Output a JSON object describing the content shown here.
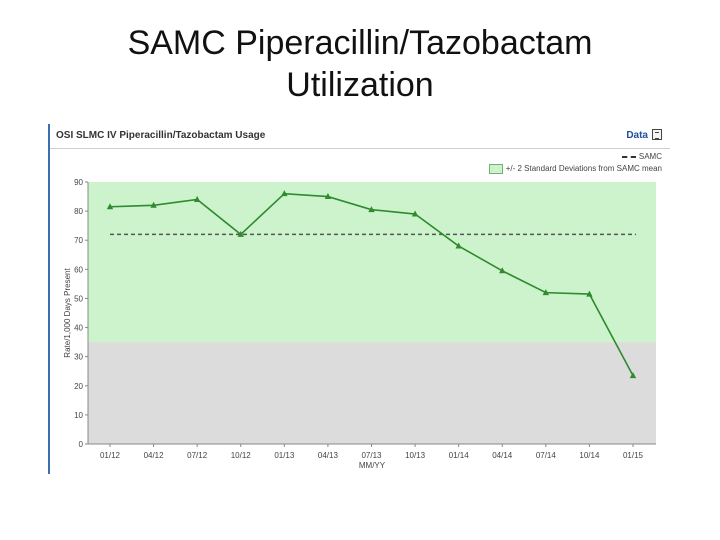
{
  "slide": {
    "title_line1": "SAMC Piperacillin/Tazobactam",
    "title_line2": "Utilization"
  },
  "panel": {
    "chart_title": "OSI SLMC IV Piperacillin/Tazobactam Usage",
    "data_link": "Data"
  },
  "colors": {
    "band": "#cdf3cd",
    "below_band": "#dcdcdc",
    "line": "#2e8b2e",
    "mean": "#555555"
  },
  "chart_data": {
    "type": "line",
    "title": "OSI SLMC IV Piperacillin/Tazobactam Usage",
    "xlabel": "MM/YY",
    "ylabel": "Rate/1,000 Days Present",
    "categories": [
      "01/12",
      "04/12",
      "07/12",
      "10/12",
      "01/13",
      "04/13",
      "07/13",
      "10/13",
      "01/14",
      "04/14",
      "07/14",
      "10/14",
      "01/15"
    ],
    "series": [
      {
        "values": [
          81.5,
          82,
          84,
          72,
          86,
          85,
          80.5,
          79,
          68,
          59.5,
          52,
          51.5,
          23.5
        ]
      }
    ],
    "reference_lines": [
      {
        "label": "SAMC",
        "value": 72,
        "style": "dashed"
      }
    ],
    "band": {
      "label": "+/- 2 Standard Deviations from SAMC mean",
      "from": 35,
      "to": 90
    },
    "y_ticks": [
      "0",
      "10",
      "20",
      "30",
      "40",
      "50",
      "60",
      "70",
      "80",
      "90"
    ],
    "ylim": [
      0,
      90
    ],
    "grid": false,
    "legend_position": "top-right"
  }
}
